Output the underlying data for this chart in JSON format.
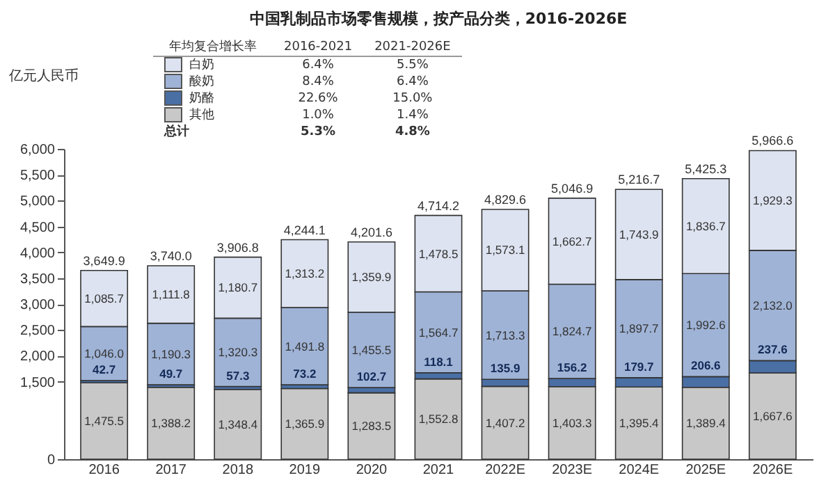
{
  "chart_data": {
    "type": "bar",
    "stacked": true,
    "title": "中国乳制品市场零售规模，按产品分类，2016-2026E",
    "ylabel": "亿元人民币",
    "categories": [
      "2016",
      "2017",
      "2018",
      "2019",
      "2020",
      "2021",
      "2022E",
      "2023E",
      "2024E",
      "2025E",
      "2026E"
    ],
    "series": [
      {
        "name": "其他",
        "color": "#c8c8c8",
        "values": [
          1475.5,
          1388.2,
          1348.4,
          1365.9,
          1283.5,
          1552.8,
          1407.2,
          1403.3,
          1395.4,
          1389.4,
          1667.6
        ],
        "value_labels": [
          "1,475.5",
          "1,388.2",
          "1,348.4",
          "1,365.9",
          "1,283.5",
          "1,552.8",
          "1,407.2",
          "1,403.3",
          "1,395.4",
          "1,389.4",
          "1,667.6"
        ]
      },
      {
        "name": "奶酪",
        "color": "#4a6fa5",
        "values": [
          42.7,
          49.7,
          57.3,
          73.2,
          102.7,
          118.1,
          135.9,
          156.2,
          179.7,
          206.6,
          237.6
        ],
        "value_labels": [
          "42.7",
          "49.7",
          "57.3",
          "73.2",
          "102.7",
          "118.1",
          "135.9",
          "156.2",
          "179.7",
          "206.6",
          "237.6"
        ]
      },
      {
        "name": "酸奶",
        "color": "#9fb3d6",
        "values": [
          1046.0,
          1190.3,
          1320.3,
          1491.8,
          1455.5,
          1564.7,
          1713.3,
          1824.7,
          1897.7,
          1992.6,
          2132.0
        ],
        "value_labels": [
          "1,046.0",
          "1,190.3",
          "1,320.3",
          "1,491.8",
          "1,455.5",
          "1,564.7",
          "1,713.3",
          "1,824.7",
          "1,897.7",
          "1,992.6",
          "2,132.0"
        ]
      },
      {
        "name": "白奶",
        "color": "#dde3f0",
        "values": [
          1085.7,
          1111.8,
          1180.7,
          1313.2,
          1359.9,
          1478.5,
          1573.1,
          1662.7,
          1743.9,
          1836.7,
          1929.3
        ],
        "value_labels": [
          "1,085.7",
          "1,111.8",
          "1,180.7",
          "1,313.2",
          "1,359.9",
          "1,478.5",
          "1,573.1",
          "1,662.7",
          "1,743.9",
          "1,836.7",
          "1,929.3"
        ]
      }
    ],
    "totals": [
      "3,649.9",
      "3,740.0",
      "3,906.8",
      "4,244.1",
      "4,201.6",
      "4,714.2",
      "4,829.6",
      "5,046.9",
      "5,216.7",
      "5,425.3",
      "5,966.6"
    ],
    "ylim": [
      0,
      6000
    ],
    "yticks": [
      0,
      {
        "value": 1500,
        "label": "1,500"
      },
      {
        "value": 2000,
        "label": "2,000"
      },
      {
        "value": 2500,
        "label": "2,500"
      },
      {
        "value": 3000,
        "label": "3,000"
      },
      {
        "value": 3500,
        "label": "3,500"
      },
      {
        "value": 4000,
        "label": "4,000"
      },
      {
        "value": 4500,
        "label": "4,500"
      },
      {
        "value": 5000,
        "label": "5,000"
      },
      {
        "value": 5500,
        "label": "5,500"
      },
      {
        "value": 6000,
        "label": "6,000"
      }
    ],
    "legend": "top left",
    "annotations": [
      "年均复合增长率",
      "2016-2021",
      "2021-2026E",
      "6.4%",
      "5.5%",
      "8.4%",
      "6.4%",
      "22.6%",
      "15.0%",
      "1.0%",
      "1.4%",
      "总计",
      "5.3%",
      "4.8%"
    ]
  }
}
